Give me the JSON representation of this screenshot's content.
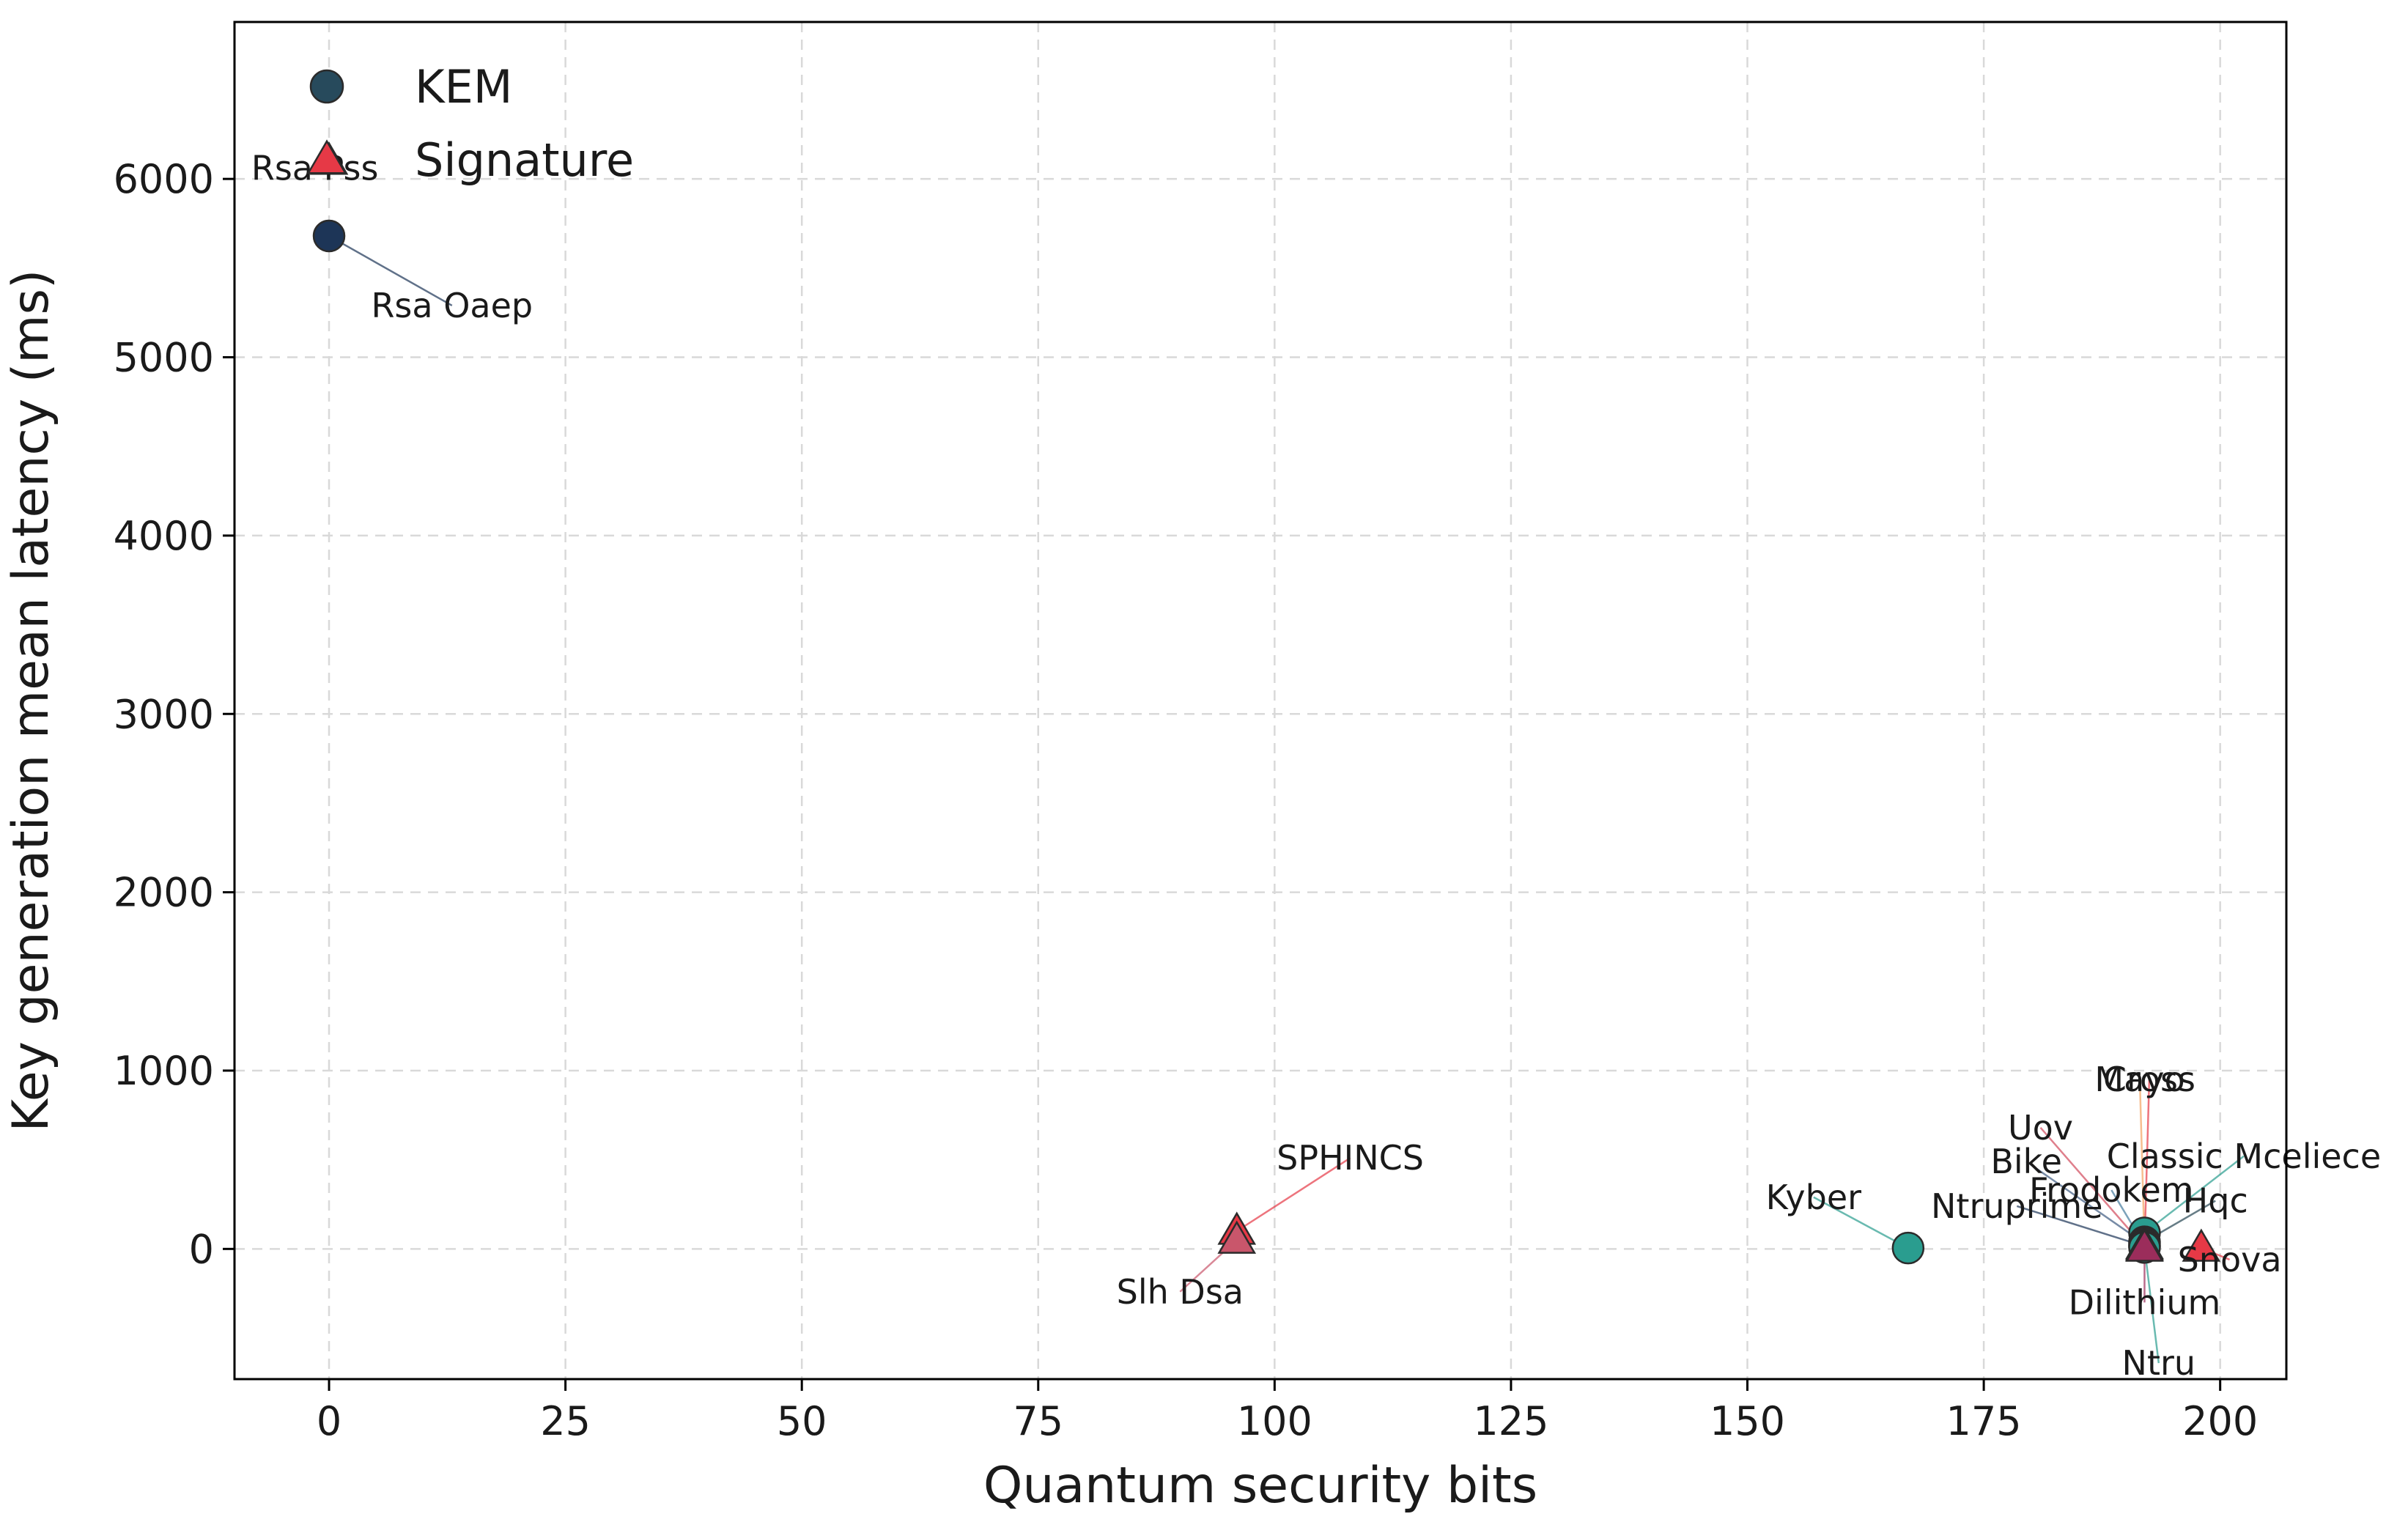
{
  "chart_data": {
    "type": "scatter",
    "xlabel": "Quantum security bits",
    "ylabel": "Key generation mean latency (ms)",
    "xlim": [
      -10,
      207
    ],
    "ylim": [
      -730,
      6880
    ],
    "xticks": [
      0,
      25,
      50,
      75,
      100,
      125,
      150,
      175,
      200
    ],
    "yticks": [
      0,
      1000,
      2000,
      3000,
      4000,
      5000,
      6000
    ],
    "grid": true,
    "legend_position": "top-left",
    "legend": [
      {
        "name": "KEM",
        "marker": "circle",
        "color": "#274a5c"
      },
      {
        "name": "Signature",
        "marker": "triangle",
        "color": "#e63946"
      }
    ],
    "points": [
      {
        "label": "Rsa Pss",
        "type": "Signature",
        "x": 0,
        "y": 6100,
        "color": "#e63946"
      },
      {
        "label": "Rsa Oaep",
        "type": "KEM",
        "x": 0,
        "y": 5680,
        "color": "#1d3557"
      },
      {
        "label": "SPHINCS",
        "type": "Signature",
        "x": 96,
        "y": 100,
        "color": "#e63946"
      },
      {
        "label": "Slh Dsa",
        "type": "Signature",
        "x": 96,
        "y": 50,
        "color": "#c9566b"
      },
      {
        "label": "Kyber",
        "type": "KEM",
        "x": 167,
        "y": 5,
        "color": "#2a9d8f"
      },
      {
        "label": "Classic Mceliece",
        "type": "KEM",
        "x": 192,
        "y": 90,
        "color": "#2a9d8f"
      },
      {
        "label": "Hqc",
        "type": "KEM",
        "x": 192,
        "y": 40,
        "color": "#264653"
      },
      {
        "label": "Bike",
        "type": "KEM",
        "x": 192,
        "y": 30,
        "color": "#3d5a80"
      },
      {
        "label": "Frodokem",
        "type": "KEM",
        "x": 192,
        "y": 20,
        "color": "#457b9d"
      },
      {
        "label": "Ntruprime",
        "type": "KEM",
        "x": 192,
        "y": 15,
        "color": "#1d3557"
      },
      {
        "label": "Ntru",
        "type": "KEM",
        "x": 192,
        "y": 8,
        "color": "#2a9d8f"
      },
      {
        "label": "Mayo",
        "type": "Signature",
        "x": 192,
        "y": 20,
        "color": "#f4a261"
      },
      {
        "label": "Cross",
        "type": "Signature",
        "x": 192,
        "y": 15,
        "color": "#e63946"
      },
      {
        "label": "Uov",
        "type": "Signature",
        "x": 192,
        "y": 10,
        "color": "#d1495b"
      },
      {
        "label": "Dilithium",
        "type": "Signature",
        "x": 192,
        "y": 5,
        "color": "#9b2d5b"
      },
      {
        "label": "Snova",
        "type": "Signature",
        "x": 198,
        "y": 5,
        "color": "#e63946"
      }
    ],
    "annotations": [
      {
        "point": "Rsa Pss",
        "label_x": -1.5,
        "label_y": 6060,
        "anchor": "middle",
        "leader_color": ""
      },
      {
        "point": "Rsa Oaep",
        "label_x": 13,
        "label_y": 5290,
        "anchor": "middle",
        "leader_color": "#1d3557"
      },
      {
        "point": "SPHINCS",
        "label_x": 108,
        "label_y": 510,
        "anchor": "middle",
        "leader_color": "#e63946"
      },
      {
        "point": "Slh Dsa",
        "label_x": 90,
        "label_y": -240,
        "anchor": "middle",
        "leader_color": "#c9566b"
      },
      {
        "point": "Kyber",
        "label_x": 157,
        "label_y": 290,
        "anchor": "middle",
        "leader_color": "#2a9d8f"
      },
      {
        "point": "Classic Mceliece",
        "label_x": 202.5,
        "label_y": 520,
        "anchor": "middle",
        "leader_color": "#2a9d8f"
      },
      {
        "point": "Hqc",
        "label_x": 199.5,
        "label_y": 270,
        "anchor": "middle",
        "leader_color": "#264653"
      },
      {
        "point": "Bike",
        "label_x": 179.5,
        "label_y": 490,
        "anchor": "middle",
        "leader_color": "#3d5a80"
      },
      {
        "point": "Frodokem",
        "label_x": 188.5,
        "label_y": 330,
        "anchor": "middle",
        "leader_color": "#457b9d"
      },
      {
        "point": "Ntruprime",
        "label_x": 178.5,
        "label_y": 240,
        "anchor": "middle",
        "leader_color": "#1d3557"
      },
      {
        "point": "Ntru",
        "label_x": 193.5,
        "label_y": -640,
        "anchor": "middle",
        "leader_color": "#2a9d8f"
      },
      {
        "point": "Mayo",
        "label_x": 191.5,
        "label_y": 950,
        "anchor": "middle",
        "leader_color": "#f4a261"
      },
      {
        "point": "Cross",
        "label_x": 192.5,
        "label_y": 950,
        "anchor": "middle",
        "leader_color": "#e63946"
      },
      {
        "point": "Uov",
        "label_x": 181,
        "label_y": 680,
        "anchor": "middle",
        "leader_color": "#d1495b"
      },
      {
        "point": "Dilithium",
        "label_x": 192,
        "label_y": -300,
        "anchor": "middle",
        "leader_color": "#9b2d5b"
      },
      {
        "point": "Snova",
        "label_x": 201,
        "label_y": -60,
        "anchor": "middle",
        "leader_color": "#e63946"
      }
    ]
  }
}
